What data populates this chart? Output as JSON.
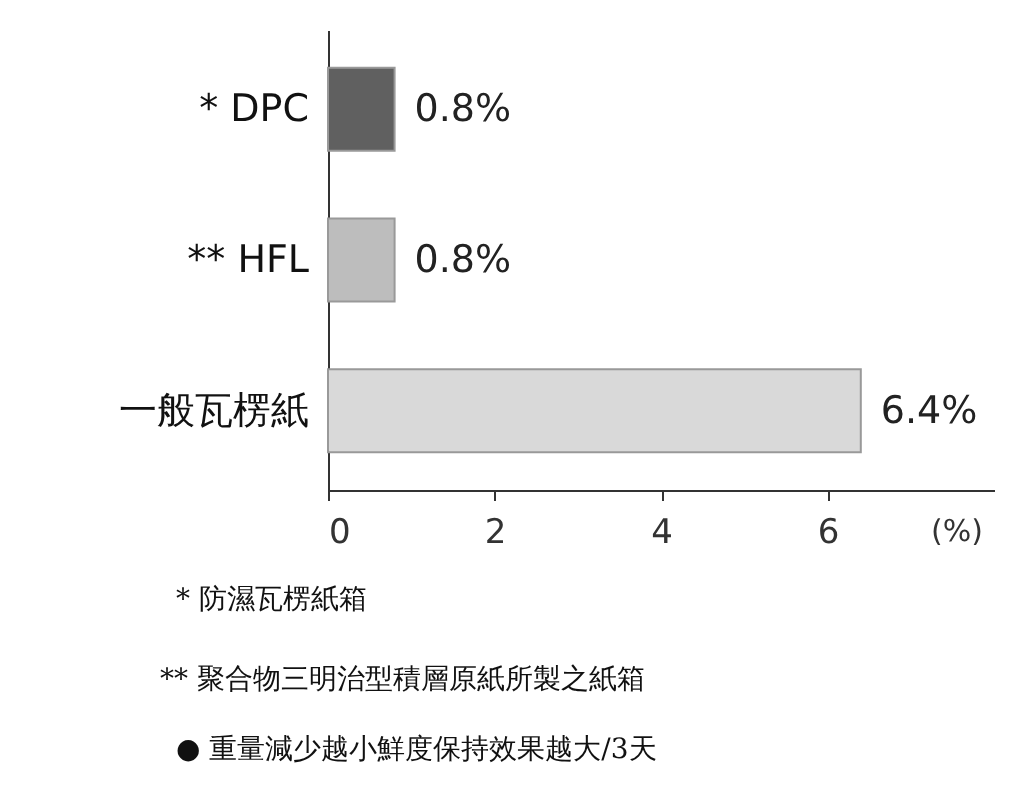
{
  "chart_data": {
    "type": "bar",
    "orientation": "horizontal",
    "xlabel": "(%)",
    "categories": [
      "* DPC",
      "** HFL",
      "一般瓦楞紙"
    ],
    "values": [
      0.8,
      0.8,
      6.4
    ],
    "colors": [
      "#606060",
      "#bdbdbd",
      "#d9d9d9"
    ],
    "value_labels": [
      "0.8%",
      "0.8%",
      "6.4%"
    ],
    "xlim": [
      0,
      8
    ],
    "xticks": [
      0,
      2,
      4,
      6
    ],
    "grid": false,
    "annotations": [
      "*  防濕瓦楞紙箱",
      "** 聚合物三明治型積層原紙所製之紙箱",
      "●  重量減少越小鮮度保持效果越大/3天"
    ]
  }
}
